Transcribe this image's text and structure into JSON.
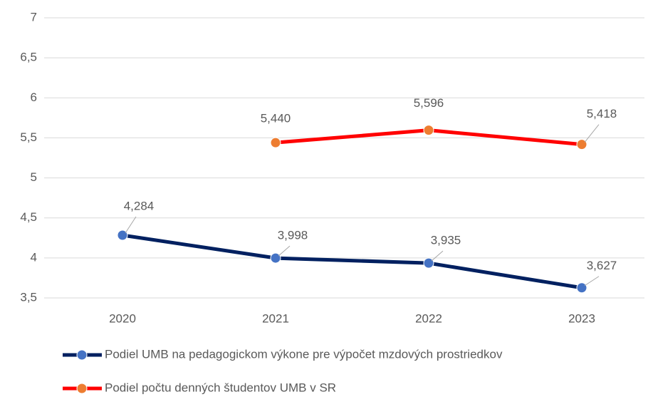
{
  "chart_data": {
    "type": "line",
    "categories": [
      "2020",
      "2021",
      "2022",
      "2023"
    ],
    "series": [
      {
        "name": "Podiel UMB na pedagogickom výkone pre výpočet mzdových prostriedkov",
        "color": "#002060",
        "marker_color": "#4472c4",
        "values": [
          4.284,
          3.998,
          3.935,
          3.627
        ],
        "value_labels": [
          "4,284",
          "3,998",
          "3,935",
          "3,627"
        ]
      },
      {
        "name": "Podiel počtu denných študentov UMB v SR",
        "color": "#ff0000",
        "marker_color": "#ed7d31",
        "values": [
          null,
          5.44,
          5.596,
          5.418
        ],
        "value_labels": [
          null,
          "5,440",
          "5,596",
          "5,418"
        ]
      }
    ],
    "ylim": [
      3.5,
      7
    ],
    "yticks": [
      {
        "value": 3.5,
        "label": "3,5"
      },
      4,
      {
        "value": 4.5,
        "label": "4,5"
      },
      5,
      {
        "value": 5.5,
        "label": "5,5"
      },
      6,
      {
        "value": 6.5,
        "label": "6,5"
      },
      7
    ],
    "grid": true
  }
}
